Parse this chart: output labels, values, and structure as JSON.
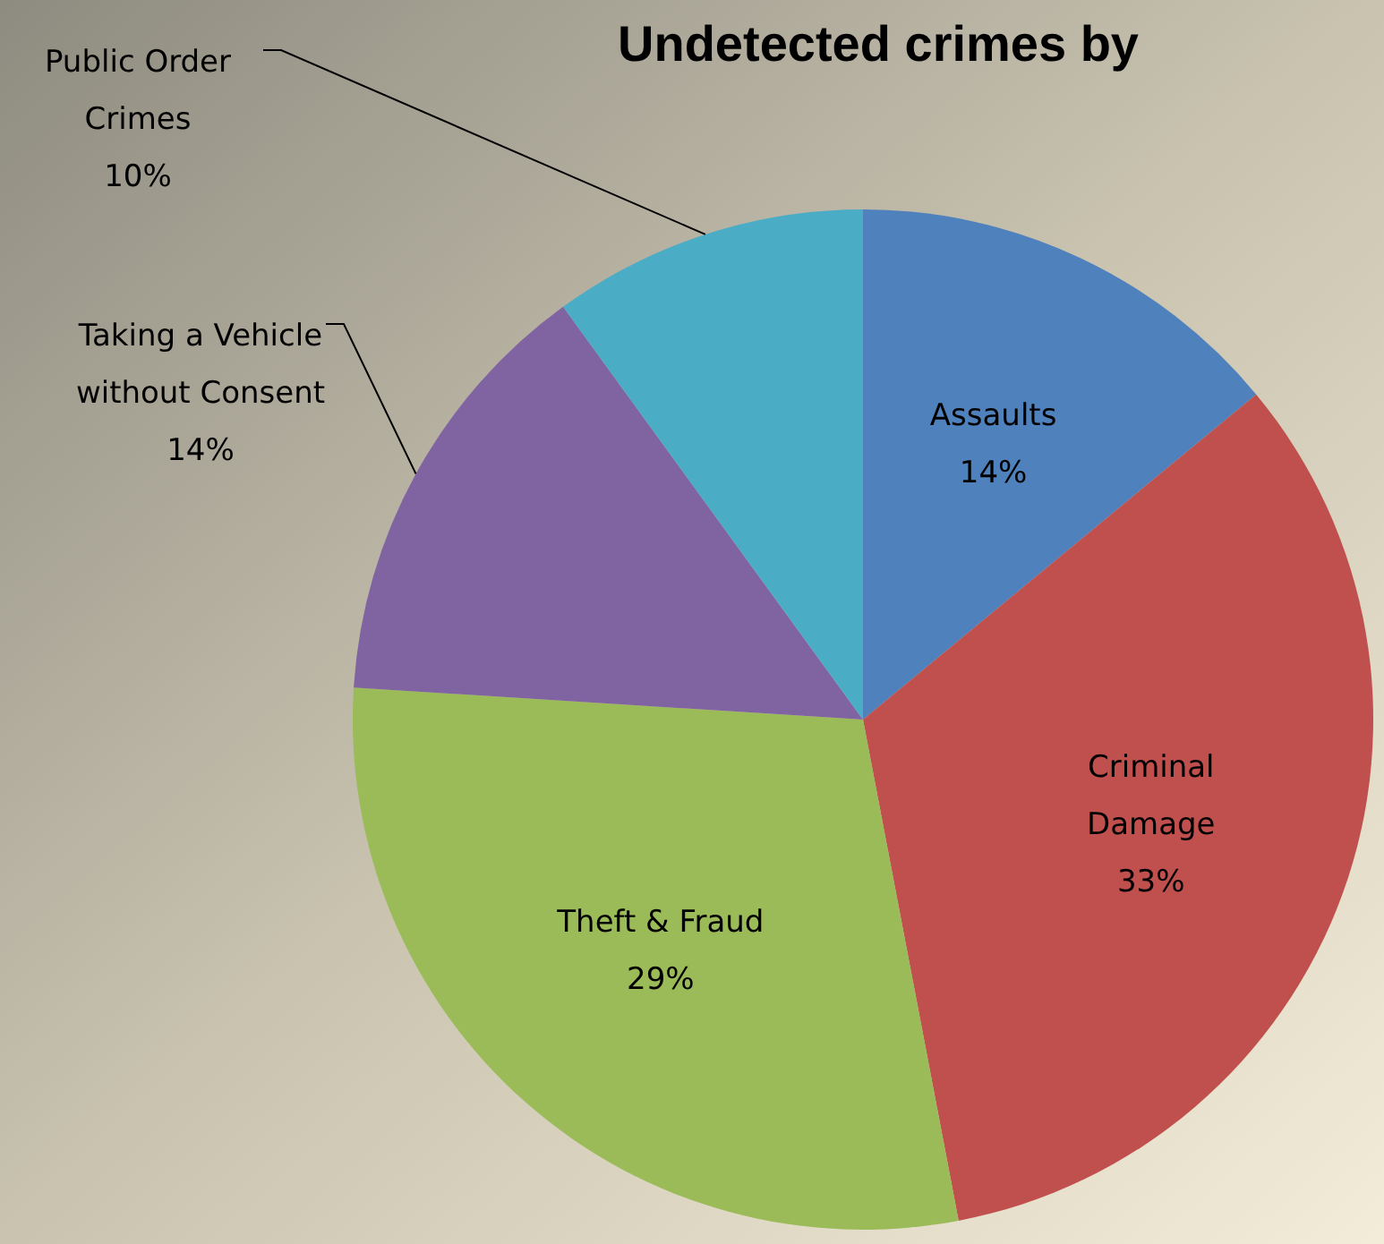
{
  "chart_data": {
    "type": "pie",
    "title": "Undetected crimes by",
    "categories": [
      "Assaults",
      "Criminal Damage",
      "Theft & Fraud",
      "Taking a Vehicle without Consent",
      "Public Order Crimes"
    ],
    "values": [
      14,
      33,
      29,
      14,
      10
    ],
    "colors": [
      "#4f81bd",
      "#c0504d",
      "#9bbb59",
      "#8064a2",
      "#4bacc6"
    ],
    "value_labels": [
      "14%",
      "33%",
      "29%",
      "14%",
      "10%"
    ]
  }
}
